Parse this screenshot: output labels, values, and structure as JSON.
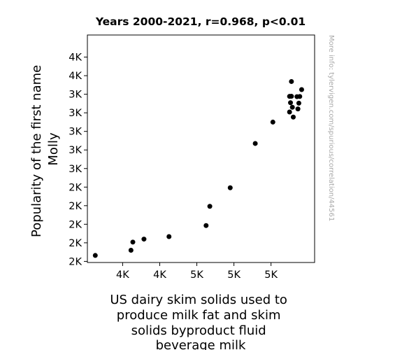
{
  "chart_data": {
    "type": "scatter",
    "title": "Years 2000-2021, r=0.968, p<0.01",
    "xlabel_lines": [
      "US dairy skim solids used to",
      "produce milk fat and skim",
      "solids byproduct fluid",
      "beverage milk"
    ],
    "ylabel_lines": [
      "Popularity of the first name",
      "Molly"
    ],
    "watermark": "More info: tylervigen.com/spurious/correlation/44561",
    "xlim": [
      3420,
      5870
    ],
    "ylim": [
      1588,
      4038
    ],
    "x_ticks": [
      {
        "value": 3800,
        "label": "4K"
      },
      {
        "value": 4200,
        "label": "4K"
      },
      {
        "value": 4600,
        "label": "5K"
      },
      {
        "value": 5000,
        "label": "5K"
      },
      {
        "value": 5400,
        "label": "5K"
      }
    ],
    "y_ticks": [
      {
        "value": 1600,
        "label": "2K"
      },
      {
        "value": 1800,
        "label": "2K"
      },
      {
        "value": 2000,
        "label": "2K"
      },
      {
        "value": 2200,
        "label": "2K"
      },
      {
        "value": 2400,
        "label": "2K"
      },
      {
        "value": 2600,
        "label": "3K"
      },
      {
        "value": 2800,
        "label": "3K"
      },
      {
        "value": 3000,
        "label": "3K"
      },
      {
        "value": 3200,
        "label": "3K"
      },
      {
        "value": 3400,
        "label": "3K"
      },
      {
        "value": 3600,
        "label": "4K"
      },
      {
        "value": 3800,
        "label": "4K"
      }
    ],
    "points": [
      {
        "x": 3505,
        "y": 1664
      },
      {
        "x": 3890,
        "y": 1720
      },
      {
        "x": 3910,
        "y": 1808
      },
      {
        "x": 4030,
        "y": 1840
      },
      {
        "x": 4300,
        "y": 1867
      },
      {
        "x": 4700,
        "y": 1986
      },
      {
        "x": 4740,
        "y": 2193
      },
      {
        "x": 4960,
        "y": 2393
      },
      {
        "x": 5230,
        "y": 2870
      },
      {
        "x": 5420,
        "y": 3100
      },
      {
        "x": 5600,
        "y": 3209
      },
      {
        "x": 5640,
        "y": 3154
      },
      {
        "x": 5630,
        "y": 3260
      },
      {
        "x": 5610,
        "y": 3309
      },
      {
        "x": 5600,
        "y": 3377
      },
      {
        "x": 5620,
        "y": 3378
      },
      {
        "x": 5680,
        "y": 3374
      },
      {
        "x": 5700,
        "y": 3304
      },
      {
        "x": 5710,
        "y": 3376
      },
      {
        "x": 5690,
        "y": 3242
      },
      {
        "x": 5730,
        "y": 3450
      },
      {
        "x": 5620,
        "y": 3537
      }
    ]
  }
}
